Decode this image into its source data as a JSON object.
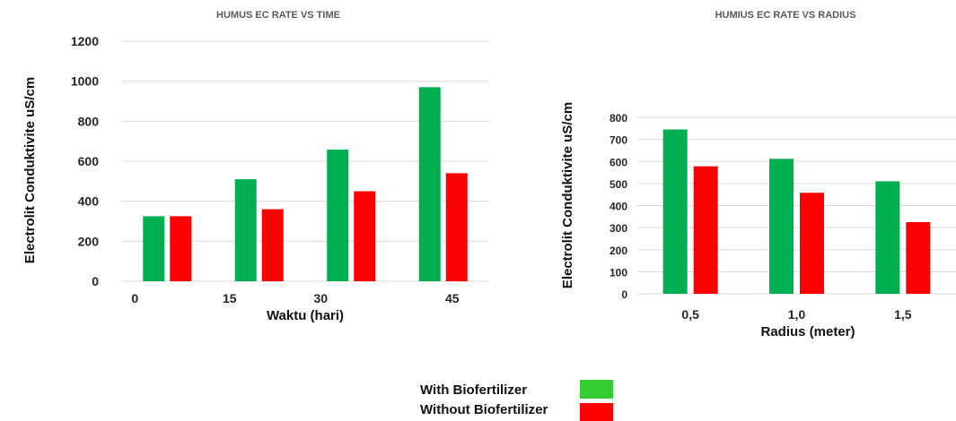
{
  "colors": {
    "with": "#00b050",
    "without": "#ff0000",
    "legend_with": "#33cc33",
    "legend_without": "#ff0000",
    "grid": "#d9d9d9"
  },
  "chart_data": [
    {
      "type": "bar",
      "title": "HUMUS EC RATE VS  TIME",
      "xlabel": "Waktu  (hari)",
      "ylabel": "Electrolit Conduktivite  uS/cm",
      "categories": [
        "0",
        "15",
        "30",
        "45"
      ],
      "ylim": [
        0,
        1200
      ],
      "yticks": [
        "0",
        "200",
        "400",
        "600",
        "800",
        "1000",
        "1200"
      ],
      "grid": true,
      "series": [
        {
          "name": "With Biofertilizer",
          "values": [
            325,
            510,
            658,
            970
          ]
        },
        {
          "name": "Without Biofertilizer",
          "values": [
            325,
            360,
            450,
            540
          ]
        }
      ]
    },
    {
      "type": "bar",
      "title": "HUMIUS EC RATE VS  RADIUS",
      "xlabel": "Radius (meter)",
      "ylabel": "Electrolit Conduktivite  uS/cm",
      "categories": [
        "0,5",
        "1,0",
        "1,5"
      ],
      "ylim": [
        0,
        800
      ],
      "yticks": [
        "0",
        "100",
        "200",
        "300",
        "400",
        "500",
        "600",
        "700",
        "800"
      ],
      "grid": true,
      "series": [
        {
          "name": "With Biofertilizer",
          "values": [
            745,
            612,
            510
          ]
        },
        {
          "name": "Without Biofertilizer",
          "values": [
            578,
            458,
            325
          ]
        }
      ]
    }
  ],
  "legend": {
    "placement": "bottom-center",
    "items": [
      {
        "label": "With Biofertilizer"
      },
      {
        "label": "Without Biofertilizer"
      }
    ]
  }
}
